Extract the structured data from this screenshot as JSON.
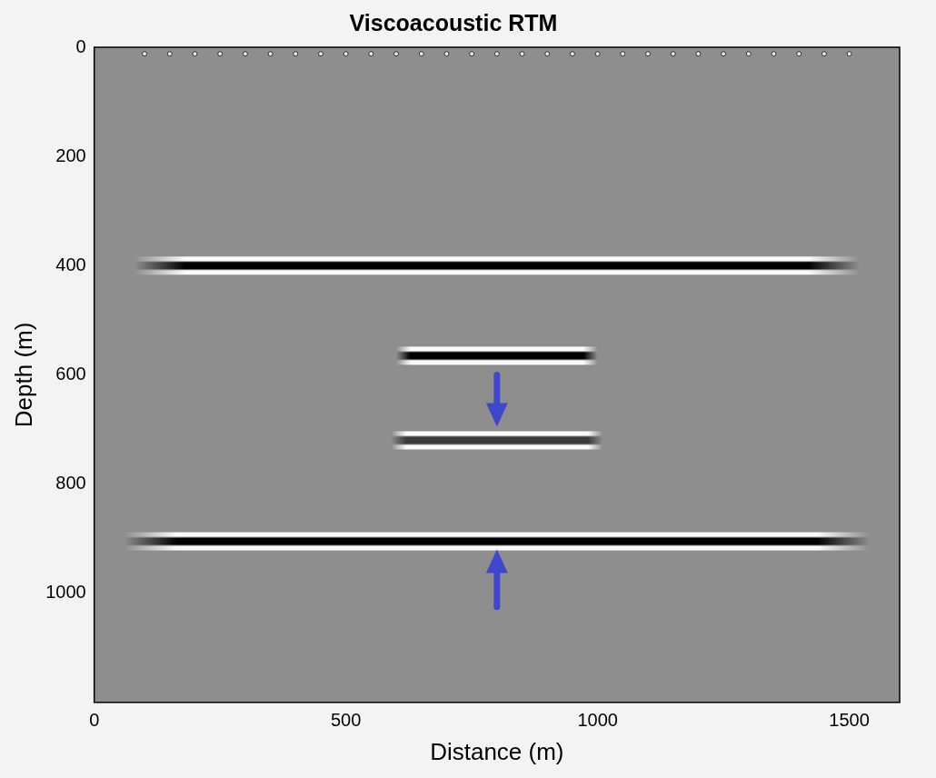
{
  "chart_data": {
    "type": "image",
    "title": "Viscoacoustic RTM",
    "x_label": "Distance (m)",
    "y_label": "Depth (m)",
    "xlim": [
      0,
      1600
    ],
    "xticks": [
      0,
      500,
      1000,
      1500
    ],
    "ylim": [
      0,
      1200
    ],
    "yticks": [
      0,
      200,
      400,
      600,
      800,
      1000
    ],
    "grid": false,
    "reflectors": [
      {
        "x": [
          80,
          1520
        ],
        "depth": 400,
        "color": "#000000"
      },
      {
        "x": [
          600,
          1000
        ],
        "depth": 565,
        "color": "#000000"
      },
      {
        "x": [
          590,
          1010
        ],
        "depth": 720,
        "color": "#3a3a3a"
      },
      {
        "x": [
          60,
          1540
        ],
        "depth": 905,
        "color": "#000000"
      }
    ],
    "sources": {
      "depth": 12,
      "x": [
        100,
        150,
        200,
        250,
        300,
        350,
        400,
        450,
        500,
        550,
        600,
        650,
        700,
        750,
        800,
        850,
        900,
        950,
        1000,
        1050,
        1100,
        1150,
        1200,
        1250,
        1300,
        1350,
        1400,
        1450,
        1500
      ]
    },
    "arrows": [
      {
        "x": 800,
        "from": 600,
        "to": 695,
        "color": "#3f48cc"
      },
      {
        "x": 800,
        "from": 1025,
        "to": 920,
        "color": "#3f48cc"
      }
    ]
  }
}
